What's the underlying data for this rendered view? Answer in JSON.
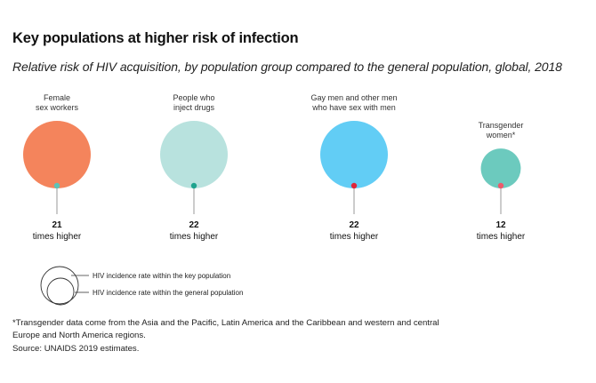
{
  "header": {
    "title": "Key populations at higher risk of infection",
    "subtitle": "Relative risk of HIV acquisition, by population group compared to the general population, global, 2018"
  },
  "chart_data": {
    "type": "bubble",
    "title": "Key populations at higher risk of infection",
    "subtitle": "Relative risk of HIV acquisition, by population group compared to the general population, global, 2018",
    "value_suffix": "times higher",
    "series": [
      {
        "name": "Female sex workers",
        "label_lines": [
          "Female",
          "sex workers"
        ],
        "relative_risk": 21,
        "circle_color": "#F4845C",
        "dot_color": "#5CC4B8"
      },
      {
        "name": "People who inject drugs",
        "label_lines": [
          "People who",
          "inject drugs"
        ],
        "relative_risk": 22,
        "circle_color": "#B8E2DE",
        "dot_color": "#1FA38E"
      },
      {
        "name": "Gay men and other men who have sex with men",
        "label_lines": [
          "Gay men and other men",
          "who have sex with men"
        ],
        "relative_risk": 22,
        "circle_color": "#62CDF5",
        "dot_color": "#E0263A"
      },
      {
        "name": "Transgender women*",
        "label_lines": [
          "Transgender",
          "women*"
        ],
        "relative_risk": 12,
        "circle_color": "#6CCABE",
        "dot_color": "#EE5A6C"
      }
    ],
    "legend": [
      {
        "label": "HIV incidence rate within the key population",
        "shape": "outer-circle"
      },
      {
        "label": "HIV incidence rate within the general population",
        "shape": "inner-circle"
      }
    ]
  },
  "footer": {
    "footnote": "*Transgender data come from the Asia and the Pacific, Latin America and the Caribbean and western and central Europe and North America regions.",
    "source": "Source: UNAIDS 2019 estimates."
  }
}
